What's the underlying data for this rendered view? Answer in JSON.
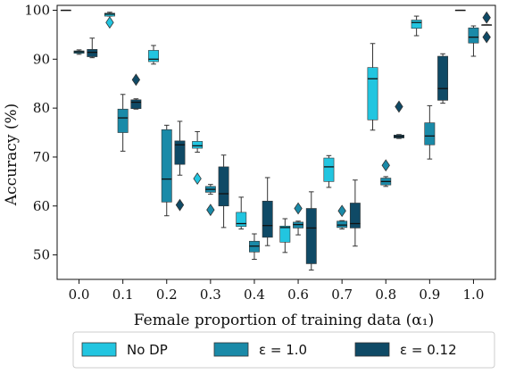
{
  "chart_data": {
    "type": "box",
    "xlabel": "Female proportion of training data (α₁)",
    "ylabel": "Accuracy (%)",
    "categories": [
      "0.0",
      "0.1",
      "0.2",
      "0.3",
      "0.4",
      "0.6",
      "0.7",
      "0.8",
      "0.9",
      "1.0"
    ],
    "ylim": [
      45,
      101
    ],
    "yticks": [
      50,
      60,
      70,
      80,
      90,
      100
    ],
    "grid": false,
    "legend_position": "bottom",
    "series": [
      {
        "name": "No DP",
        "legend_label": "No DP",
        "color": "#22c5e0",
        "boxes": [
          {
            "min": 100,
            "q1": 100,
            "median": 100,
            "q3": 100,
            "max": 100,
            "outliers": []
          },
          {
            "min": 98.8,
            "q1": 98.8,
            "median": 99.2,
            "q3": 99.4,
            "max": 99.6,
            "outliers": [
              97.5
            ]
          },
          {
            "min": 89.0,
            "q1": 89.5,
            "median": 90.0,
            "q3": 91.8,
            "max": 92.8,
            "outliers": []
          },
          {
            "min": 71.0,
            "q1": 71.8,
            "median": 72.3,
            "q3": 73.2,
            "max": 75.2,
            "outliers": [
              65.6
            ]
          },
          {
            "min": 55.3,
            "q1": 55.8,
            "median": 56.4,
            "q3": 58.7,
            "max": 61.8,
            "outliers": []
          },
          {
            "min": 50.5,
            "q1": 52.6,
            "median": 55.6,
            "q3": 55.9,
            "max": 57.4,
            "outliers": []
          },
          {
            "min": 63.8,
            "q1": 65.0,
            "median": 68.0,
            "q3": 69.8,
            "max": 70.3,
            "outliers": []
          },
          {
            "min": 75.5,
            "q1": 77.6,
            "median": 86.0,
            "q3": 88.3,
            "max": 93.2,
            "outliers": []
          },
          {
            "min": 94.8,
            "q1": 96.3,
            "median": 97.5,
            "q3": 98.0,
            "max": 98.8,
            "outliers": []
          },
          {
            "min": 100,
            "q1": 100,
            "median": 100,
            "q3": 100,
            "max": 100,
            "outliers": []
          }
        ]
      },
      {
        "name": "ε = 1.0",
        "legend_label": "ε = 1.0",
        "color": "#1a8aa8",
        "boxes": [
          {
            "min": 91.0,
            "q1": 91.2,
            "median": 91.5,
            "q3": 91.7,
            "max": 91.9,
            "outliers": []
          },
          {
            "min": 71.2,
            "q1": 75.0,
            "median": 78.0,
            "q3": 79.8,
            "max": 82.8,
            "outliers": []
          },
          {
            "min": 58.0,
            "q1": 60.8,
            "median": 65.5,
            "q3": 75.6,
            "max": 76.5,
            "outliers": []
          },
          {
            "min": 62.4,
            "q1": 62.8,
            "median": 63.4,
            "q3": 64.0,
            "max": 64.4,
            "outliers": [
              59.2
            ]
          },
          {
            "min": 49.1,
            "q1": 50.6,
            "median": 51.8,
            "q3": 52.8,
            "max": 54.3,
            "outliers": []
          },
          {
            "min": 54.1,
            "q1": 55.5,
            "median": 56.2,
            "q3": 56.7,
            "max": 56.9,
            "outliers": [
              59.5
            ]
          },
          {
            "min": 55.3,
            "q1": 55.6,
            "median": 56.1,
            "q3": 56.9,
            "max": 57.0,
            "outliers": [
              59.0
            ]
          },
          {
            "min": 64.0,
            "q1": 64.3,
            "median": 65.0,
            "q3": 65.7,
            "max": 66.0,
            "outliers": [
              68.3
            ]
          },
          {
            "min": 69.6,
            "q1": 72.5,
            "median": 74.3,
            "q3": 77.0,
            "max": 80.5,
            "outliers": []
          },
          {
            "min": 90.6,
            "q1": 93.3,
            "median": 94.5,
            "q3": 96.4,
            "max": 96.8,
            "outliers": []
          }
        ]
      },
      {
        "name": "ε = 0.12",
        "legend_label": "ε = 0.12",
        "color": "#0f4a66",
        "boxes": [
          {
            "min": 90.3,
            "q1": 90.5,
            "median": 91.4,
            "q3": 92.0,
            "max": 94.3,
            "outliers": []
          },
          {
            "min": 79.8,
            "q1": 79.9,
            "median": 81.2,
            "q3": 81.7,
            "max": 81.9,
            "outliers": [
              85.8
            ]
          },
          {
            "min": 66.3,
            "q1": 68.5,
            "median": 72.5,
            "q3": 73.3,
            "max": 77.3,
            "outliers": [
              60.2
            ]
          },
          {
            "min": 55.6,
            "q1": 60.0,
            "median": 62.5,
            "q3": 68.0,
            "max": 70.4,
            "outliers": []
          },
          {
            "min": 51.9,
            "q1": 53.6,
            "median": 56.0,
            "q3": 61.0,
            "max": 65.8,
            "outliers": []
          },
          {
            "min": 46.9,
            "q1": 48.2,
            "median": 55.5,
            "q3": 59.5,
            "max": 62.9,
            "outliers": []
          },
          {
            "min": 51.8,
            "q1": 55.5,
            "median": 56.4,
            "q3": 60.6,
            "max": 65.3,
            "outliers": []
          },
          {
            "min": 73.8,
            "q1": 73.9,
            "median": 74.2,
            "q3": 74.5,
            "max": 74.6,
            "outliers": [
              80.3
            ]
          },
          {
            "min": 81.0,
            "q1": 81.6,
            "median": 84.0,
            "q3": 90.6,
            "max": 91.1,
            "outliers": []
          },
          {
            "min": 97.0,
            "q1": 97.0,
            "median": 97.0,
            "q3": 97.0,
            "max": 97.0,
            "outliers": [
              98.5,
              94.5
            ]
          }
        ]
      }
    ]
  }
}
